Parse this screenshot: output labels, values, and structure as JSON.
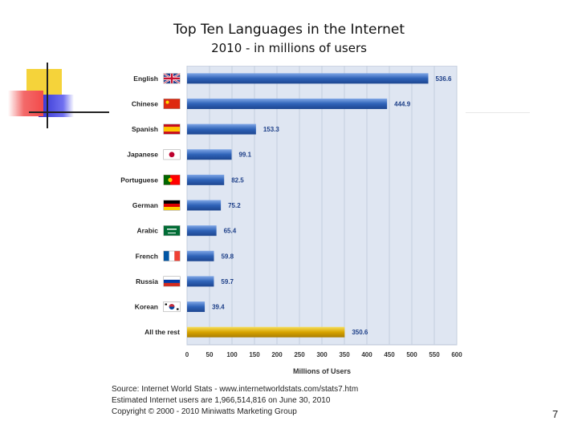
{
  "slide": {
    "title": "Top Ten Languages in the Internet",
    "subtitle": "2010 - in millions of users",
    "sources": [
      "Source: Internet World Stats - www.internetworldstats.com/stats7.htm",
      "Estimated Internet users are 1,966,514,816 on June 30, 2010",
      "Copyright © 2000 - 2010  Miniwatts Marketing Group"
    ],
    "page_number": "7"
  },
  "chart_data": {
    "type": "bar",
    "orientation": "horizontal",
    "title": "",
    "xlabel": "Millions of Users",
    "ylabel": "",
    "xlim": [
      0,
      600
    ],
    "xticks": [
      0,
      50,
      100,
      150,
      200,
      250,
      300,
      350,
      400,
      450,
      500,
      550,
      600
    ],
    "grid": true,
    "categories": [
      "English",
      "Chinese",
      "Spanish",
      "Japanese",
      "Portuguese",
      "German",
      "Arabic",
      "French",
      "Russia",
      "Korean",
      "All the rest"
    ],
    "values": [
      536.6,
      444.9,
      153.3,
      99.1,
      82.5,
      75.2,
      65.4,
      59.8,
      59.7,
      39.4,
      350.6
    ],
    "value_labels": [
      "536.6",
      "444.9",
      "153.3",
      "99.1",
      "82.5",
      "75.2",
      "65.4",
      "59.8",
      "59.7",
      "39.4",
      "350.6"
    ],
    "flags": [
      "uk-flag-icon",
      "china-flag-icon",
      "spain-flag-icon",
      "japan-flag-icon",
      "portugal-flag-icon",
      "germany-flag-icon",
      "saudi-arabia-flag-icon",
      "france-flag-icon",
      "russia-flag-icon",
      "korea-flag-icon",
      ""
    ],
    "bar_colors": [
      "#2f63b8",
      "#2f63b8",
      "#2f63b8",
      "#2f63b8",
      "#2f63b8",
      "#2f63b8",
      "#2f63b8",
      "#2f63b8",
      "#2f63b8",
      "#2f63b8",
      "#d8a400"
    ],
    "plot_background": "#dfe6f2"
  }
}
